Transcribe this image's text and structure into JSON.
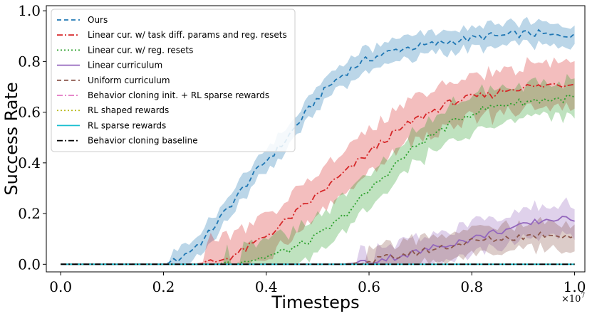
{
  "chart_data": {
    "type": "line",
    "title": "",
    "xlabel": "Timesteps",
    "ylabel": "Success Rate",
    "x_multiplier_label": "×10",
    "x_multiplier_exponent": "7",
    "xlim": [
      -0.028,
      1.02
    ],
    "ylim": [
      -0.03,
      1.02
    ],
    "xticks": [
      0.0,
      0.2,
      0.4,
      0.6,
      0.8,
      1.0
    ],
    "xtick_labels": [
      "0.0",
      "0.2",
      "0.4",
      "0.6",
      "0.8",
      "1.0"
    ],
    "yticks": [
      0.0,
      0.2,
      0.4,
      0.6,
      0.8,
      1.0
    ],
    "ytick_labels": [
      "0.0",
      "0.2",
      "0.4",
      "0.6",
      "0.8",
      "1.0"
    ],
    "legend_position": "upper-left",
    "series": [
      {
        "name": "Ours",
        "color": "#1f77b4",
        "dash": "6,4",
        "points": [
          [
            0.0,
            0.0
          ],
          [
            0.1,
            0.0
          ],
          [
            0.18,
            0.0
          ],
          [
            0.2,
            0.0
          ],
          [
            0.22,
            0.01
          ],
          [
            0.25,
            0.05
          ],
          [
            0.28,
            0.1
          ],
          [
            0.31,
            0.18
          ],
          [
            0.34,
            0.26
          ],
          [
            0.37,
            0.34
          ],
          [
            0.4,
            0.41
          ],
          [
            0.43,
            0.47
          ],
          [
            0.46,
            0.55
          ],
          [
            0.49,
            0.63
          ],
          [
            0.52,
            0.7
          ],
          [
            0.55,
            0.75
          ],
          [
            0.58,
            0.79
          ],
          [
            0.6,
            0.81
          ],
          [
            0.63,
            0.83
          ],
          [
            0.66,
            0.85
          ],
          [
            0.7,
            0.86
          ],
          [
            0.73,
            0.87
          ],
          [
            0.76,
            0.88
          ],
          [
            0.8,
            0.89
          ],
          [
            0.83,
            0.9
          ],
          [
            0.86,
            0.9
          ],
          [
            0.9,
            0.91
          ],
          [
            0.93,
            0.91
          ],
          [
            0.96,
            0.9
          ],
          [
            1.0,
            0.91
          ]
        ],
        "band": 0.05
      },
      {
        "name": "Linear cur. w/ task diff. params and reg. resets",
        "color": "#d62728",
        "dash": "8,3,2,3",
        "points": [
          [
            0.0,
            0.0
          ],
          [
            0.26,
            0.0
          ],
          [
            0.3,
            0.01
          ],
          [
            0.33,
            0.03
          ],
          [
            0.36,
            0.06
          ],
          [
            0.39,
            0.1
          ],
          [
            0.42,
            0.14
          ],
          [
            0.45,
            0.19
          ],
          [
            0.48,
            0.24
          ],
          [
            0.51,
            0.29
          ],
          [
            0.54,
            0.34
          ],
          [
            0.57,
            0.39
          ],
          [
            0.6,
            0.44
          ],
          [
            0.63,
            0.49
          ],
          [
            0.66,
            0.53
          ],
          [
            0.69,
            0.57
          ],
          [
            0.72,
            0.6
          ],
          [
            0.75,
            0.63
          ],
          [
            0.78,
            0.65
          ],
          [
            0.81,
            0.66
          ],
          [
            0.84,
            0.67
          ],
          [
            0.87,
            0.69
          ],
          [
            0.9,
            0.7
          ],
          [
            0.93,
            0.7
          ],
          [
            0.96,
            0.71
          ],
          [
            1.0,
            0.71
          ]
        ],
        "band": 0.1
      },
      {
        "name": "Linear cur. w/ reg. resets",
        "color": "#2ca02c",
        "dash": "2,3",
        "points": [
          [
            0.0,
            0.0
          ],
          [
            0.3,
            0.0
          ],
          [
            0.34,
            0.01
          ],
          [
            0.38,
            0.02
          ],
          [
            0.42,
            0.04
          ],
          [
            0.46,
            0.07
          ],
          [
            0.5,
            0.11
          ],
          [
            0.54,
            0.17
          ],
          [
            0.58,
            0.25
          ],
          [
            0.62,
            0.33
          ],
          [
            0.66,
            0.41
          ],
          [
            0.7,
            0.48
          ],
          [
            0.74,
            0.53
          ],
          [
            0.78,
            0.58
          ],
          [
            0.82,
            0.61
          ],
          [
            0.86,
            0.63
          ],
          [
            0.9,
            0.64
          ],
          [
            0.94,
            0.65
          ],
          [
            0.97,
            0.65
          ],
          [
            1.0,
            0.66
          ]
        ],
        "band": 0.08
      },
      {
        "name": "Linear curriculum",
        "color": "#9467bd",
        "dash": "",
        "points": [
          [
            0.0,
            0.0
          ],
          [
            0.55,
            0.0
          ],
          [
            0.6,
            0.01
          ],
          [
            0.65,
            0.03
          ],
          [
            0.7,
            0.05
          ],
          [
            0.75,
            0.08
          ],
          [
            0.8,
            0.1
          ],
          [
            0.85,
            0.13
          ],
          [
            0.9,
            0.15
          ],
          [
            0.93,
            0.17
          ],
          [
            0.96,
            0.18
          ],
          [
            1.0,
            0.17
          ]
        ],
        "band": 0.07
      },
      {
        "name": "Uniform curriculum",
        "color": "#8c564b",
        "dash": "6,4",
        "points": [
          [
            0.0,
            0.0
          ],
          [
            0.55,
            0.0
          ],
          [
            0.6,
            0.01
          ],
          [
            0.65,
            0.03
          ],
          [
            0.7,
            0.05
          ],
          [
            0.75,
            0.07
          ],
          [
            0.8,
            0.09
          ],
          [
            0.85,
            0.1
          ],
          [
            0.9,
            0.11
          ],
          [
            0.95,
            0.12
          ],
          [
            1.0,
            0.11
          ]
        ],
        "band": 0.06
      },
      {
        "name": "Behavior cloning init. + RL sparse rewards",
        "color": "#e377c2",
        "dash": "8,3,2,3",
        "points": [
          [
            0.0,
            0.0
          ],
          [
            1.0,
            0.0
          ]
        ],
        "band": 0.0
      },
      {
        "name": "RL shaped rewards",
        "color": "#bcbd22",
        "dash": "2,3",
        "points": [
          [
            0.0,
            0.0
          ],
          [
            1.0,
            0.0
          ]
        ],
        "band": 0.0
      },
      {
        "name": "RL sparse rewards",
        "color": "#17becf",
        "dash": "",
        "points": [
          [
            0.0,
            0.0
          ],
          [
            1.0,
            0.0
          ]
        ],
        "band": 0.0
      },
      {
        "name": "Behavior cloning baseline",
        "color": "#000000",
        "dash": "8,3,2,3",
        "points": [
          [
            0.0,
            0.0
          ],
          [
            1.0,
            0.0
          ]
        ],
        "band": 0.0
      }
    ]
  }
}
